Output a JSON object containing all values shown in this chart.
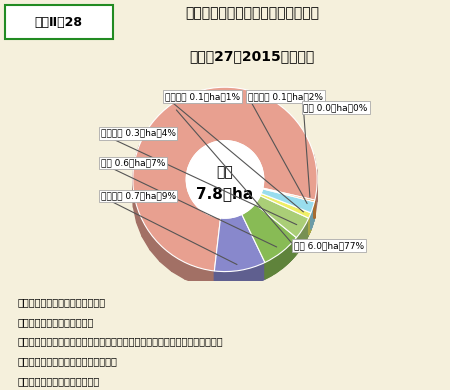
{
  "title_label": "資料Ⅱ－28",
  "title_main": "主要な野生鳥獣による森林被害面積",
  "title_sub": "（平成27（2015）年度）",
  "center_text1": "合計",
  "center_text2": "7.8千ha",
  "segments": [
    {
      "label": "シカ",
      "value": 77,
      "area": "6.0千ha",
      "color": "#E8A090"
    },
    {
      "label": "ノネズミ",
      "value": 9,
      "area": "0.7千ha",
      "color": "#8888CC"
    },
    {
      "label": "クマ",
      "value": 7,
      "area": "0.6千ha",
      "color": "#88BB55"
    },
    {
      "label": "カモシカ",
      "value": 4,
      "area": "0.3千ha",
      "color": "#AACE77"
    },
    {
      "label": "イノシシ",
      "value": 1,
      "area": "0.1千ha",
      "color": "#EEEE66"
    },
    {
      "label": "ノウサギ",
      "value": 2,
      "area": "0.1千ha",
      "color": "#99DDEE"
    },
    {
      "label": "サル",
      "value": 0,
      "area": "0.0千ha",
      "color": "#EE9944"
    }
  ],
  "bg_color": "#F5F0DC",
  "note_lines": [
    "注１：国有林及び民有林の合計。",
    "　２：森林及び苗畑の被害。",
    "　３：数値は、森林管理局及び都道府県からの報告に基づき、集計したもの。",
    "　４：計の不一致は四捨五入による。",
    "資料：林野庁研究指導課調べ。"
  ]
}
